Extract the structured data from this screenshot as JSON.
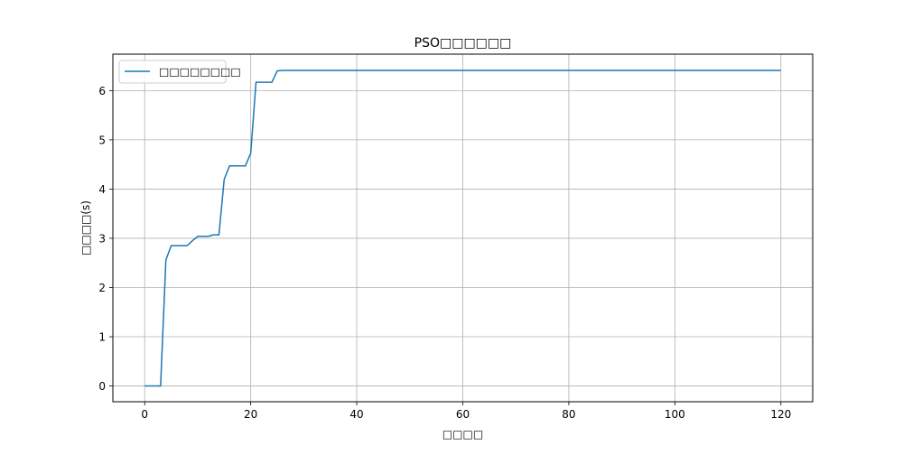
{
  "chart_data": {
    "type": "line",
    "title": "PSO□□□□□□",
    "xlabel": "□□□□",
    "ylabel": "□□□□(s)",
    "xlim": [
      -6,
      126
    ],
    "ylim": [
      -0.32,
      6.74
    ],
    "x_ticks": [
      0,
      20,
      40,
      60,
      80,
      100,
      120
    ],
    "y_ticks": [
      0,
      1,
      2,
      3,
      4,
      5,
      6
    ],
    "grid": true,
    "legend_position": "upper-left",
    "series": [
      {
        "name": "□□□□□□□□",
        "color": "#1f77b4",
        "x": [
          0,
          1,
          2,
          3,
          4,
          5,
          6,
          7,
          8,
          9,
          10,
          11,
          12,
          13,
          14,
          15,
          16,
          17,
          18,
          19,
          20,
          21,
          22,
          23,
          24,
          25,
          26,
          27,
          30,
          40,
          60,
          80,
          100,
          120
        ],
        "y": [
          0,
          0,
          0,
          0,
          2.56,
          2.85,
          2.85,
          2.85,
          2.85,
          2.95,
          3.04,
          3.04,
          3.04,
          3.07,
          3.07,
          4.2,
          4.47,
          4.47,
          4.47,
          4.47,
          4.73,
          6.17,
          6.17,
          6.17,
          6.17,
          6.4,
          6.41,
          6.41,
          6.41,
          6.41,
          6.41,
          6.41,
          6.41,
          6.41
        ]
      }
    ]
  }
}
